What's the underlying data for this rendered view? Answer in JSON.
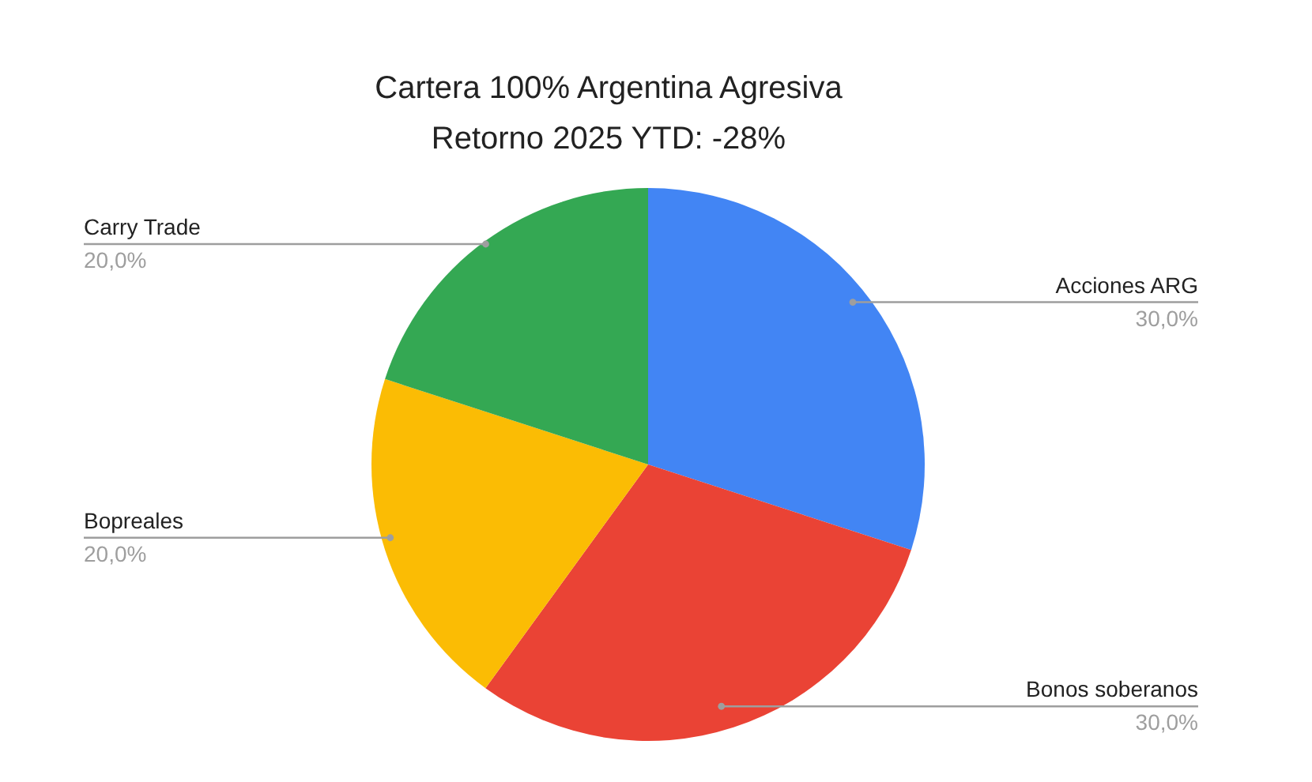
{
  "chart_data": {
    "type": "pie",
    "title": "Cartera 100% Argentina Agresiva",
    "subtitle": "Retorno 2025 YTD: -28%",
    "categories": [
      "Acciones ARG",
      "Bonos soberanos",
      "Bopreales",
      "Carry Trade"
    ],
    "values": [
      30,
      30,
      20,
      20
    ],
    "colors": [
      "#4285f4",
      "#ea4335",
      "#fbbc04",
      "#34a853"
    ],
    "value_labels": [
      "30,0%",
      "30,0%",
      "20,0%",
      "20,0%"
    ],
    "legend": false
  }
}
